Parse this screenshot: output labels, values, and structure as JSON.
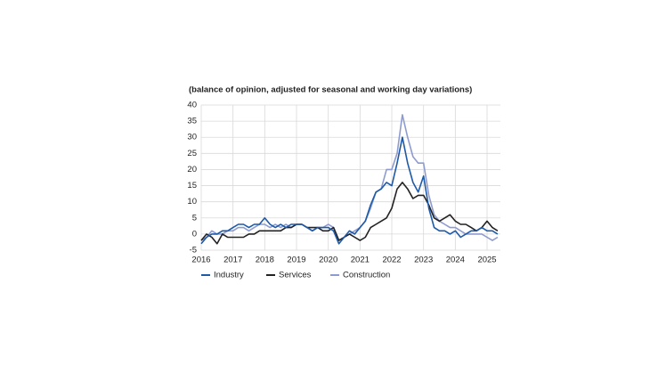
{
  "chart_data": {
    "type": "line",
    "subtitle": "(balance of opinion, adjusted for seasonal and working day variations)",
    "x": [
      2016.0,
      2016.167,
      2016.333,
      2016.5,
      2016.667,
      2016.833,
      2017.0,
      2017.167,
      2017.333,
      2017.5,
      2017.667,
      2017.833,
      2018.0,
      2018.167,
      2018.333,
      2018.5,
      2018.667,
      2018.833,
      2019.0,
      2019.167,
      2019.333,
      2019.5,
      2019.667,
      2019.833,
      2020.0,
      2020.167,
      2020.333,
      2020.5,
      2020.667,
      2020.833,
      2021.0,
      2021.167,
      2021.333,
      2021.5,
      2021.667,
      2021.833,
      2022.0,
      2022.167,
      2022.333,
      2022.5,
      2022.667,
      2022.833,
      2023.0,
      2023.167,
      2023.333,
      2023.5,
      2023.667,
      2023.833,
      2024.0,
      2024.167,
      2024.333,
      2024.5,
      2024.667,
      2024.833,
      2025.0,
      2025.167,
      2025.333
    ],
    "series": [
      {
        "name": "Industry",
        "color": "#1f5aa6",
        "values": [
          -3,
          -1,
          0,
          0,
          1,
          1,
          2,
          3,
          3,
          2,
          3,
          3,
          5,
          3,
          2,
          3,
          2,
          3,
          3,
          3,
          2,
          1,
          2,
          2,
          2,
          1,
          -3,
          -1,
          1,
          0,
          2,
          4,
          9,
          13,
          14,
          16,
          15,
          22,
          30,
          22,
          16,
          13,
          18,
          8,
          2,
          1,
          1,
          0,
          1,
          -1,
          0,
          1,
          1,
          2,
          1,
          1,
          0
        ]
      },
      {
        "name": "Services",
        "color": "#222222",
        "values": [
          -2,
          0,
          -1,
          -3,
          0,
          -1,
          -1,
          -1,
          -1,
          0,
          0,
          1,
          1,
          1,
          1,
          1,
          2,
          2,
          3,
          3,
          2,
          2,
          2,
          1,
          1,
          2,
          -2,
          -1,
          0,
          -1,
          -2,
          -1,
          2,
          3,
          4,
          5,
          8,
          14,
          16,
          14,
          11,
          12,
          12,
          9,
          5,
          4,
          5,
          6,
          4,
          3,
          3,
          2,
          1,
          2,
          4,
          2,
          1
        ]
      },
      {
        "name": "Construction",
        "color": "#8e9bd0",
        "values": [
          -2,
          -1,
          1,
          0,
          0,
          1,
          1,
          2,
          2,
          1,
          2,
          3,
          3,
          2,
          3,
          2,
          3,
          2,
          3,
          3,
          2,
          1,
          2,
          2,
          3,
          2,
          -2,
          -1,
          0,
          1,
          2,
          4,
          8,
          13,
          14,
          20,
          20,
          25,
          37,
          30,
          24,
          22,
          22,
          12,
          6,
          4,
          3,
          2,
          2,
          1,
          0,
          0,
          0,
          0,
          -1,
          -2,
          -1
        ]
      }
    ],
    "xlim": [
      2016,
      2025.42
    ],
    "xticks": [
      2016,
      2017,
      2018,
      2019,
      2020,
      2021,
      2022,
      2023,
      2024,
      2025
    ],
    "ylim": [
      -5,
      40
    ],
    "yticks": [
      -5,
      0,
      5,
      10,
      15,
      20,
      25,
      30,
      35,
      40
    ],
    "grid": true,
    "legend": "bottom"
  }
}
